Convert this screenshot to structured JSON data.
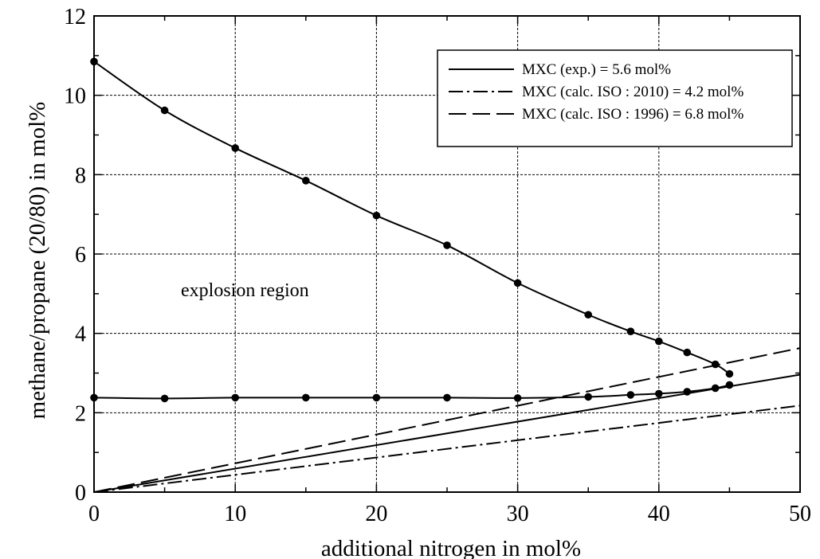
{
  "chart_data": {
    "type": "line",
    "xlabel": "additional nitrogen in mol%",
    "ylabel": "methane/propane (20/80) in mol%",
    "xlim": [
      0,
      50
    ],
    "ylim": [
      0,
      12
    ],
    "x_ticks": [
      0,
      10,
      20,
      30,
      40,
      50
    ],
    "y_ticks": [
      0,
      2,
      4,
      6,
      8,
      10,
      12
    ],
    "grid": true,
    "legend_position": "top-right",
    "annotation": "explosion region",
    "boundary_upper": {
      "x": [
        0,
        5,
        10,
        15,
        20,
        25,
        30,
        35,
        38,
        40,
        42,
        44,
        45
      ],
      "y": [
        10.85,
        9.62,
        8.67,
        7.85,
        6.97,
        6.22,
        5.27,
        4.47,
        4.05,
        3.8,
        3.52,
        3.22,
        2.98
      ]
    },
    "boundary_lower": {
      "x": [
        0,
        5,
        10,
        15,
        20,
        25,
        30,
        35,
        38,
        40,
        42,
        44,
        45
      ],
      "y": [
        2.38,
        2.36,
        2.38,
        2.38,
        2.38,
        2.38,
        2.37,
        2.4,
        2.45,
        2.48,
        2.53,
        2.62,
        2.7
      ]
    },
    "series": [
      {
        "name": "MXC (exp.) = 5.6 mol%",
        "style": "solid",
        "x": [
          0,
          50
        ],
        "y": [
          0,
          2.96
        ]
      },
      {
        "name": "MXC (calc. ISO : 2010) = 4.2 mol%",
        "style": "dashdot",
        "x": [
          0,
          50
        ],
        "y": [
          0,
          2.18
        ]
      },
      {
        "name": "MXC (calc. ISO : 1996) = 6.8 mol%",
        "style": "dashed",
        "x": [
          0,
          50
        ],
        "y": [
          0,
          3.63
        ]
      }
    ]
  }
}
